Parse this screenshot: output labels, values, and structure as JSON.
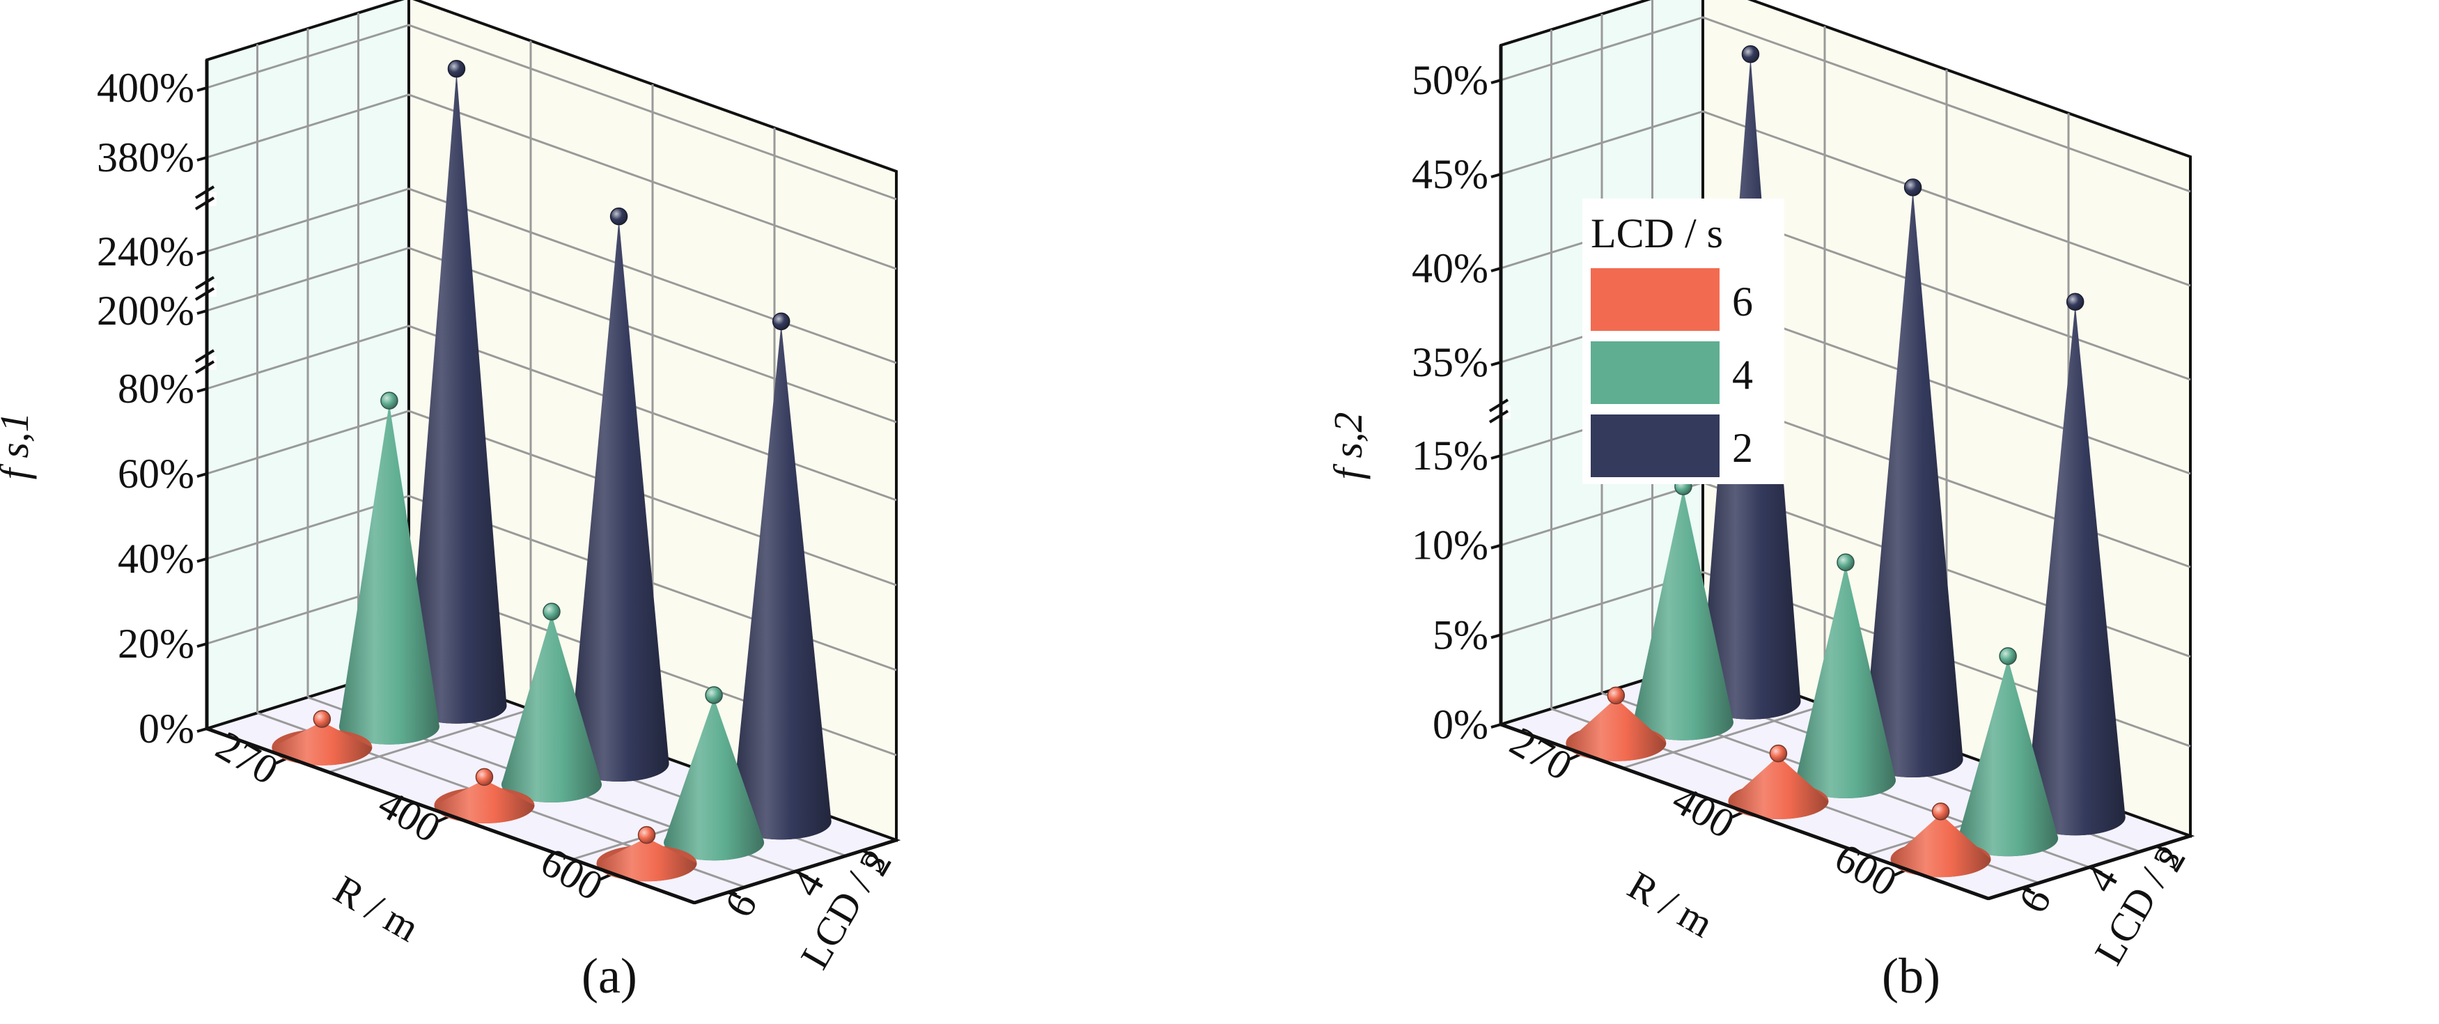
{
  "colors": {
    "lcd6": "#F26B50",
    "lcd4": "#5FAE92",
    "lcd2": "#343A5C",
    "back_wall": "#EEFBF7",
    "side_wall": "#FBFBEF",
    "floor": "#F4F2FC",
    "grid": "#9A9A9A",
    "frame": "#111111"
  },
  "captions": {
    "a": "(a)",
    "b": "(b)"
  },
  "chart_data": [
    {
      "type": "3d-cone",
      "panel": "(a)",
      "zlabel": "f s,1",
      "xlabel": "R / m",
      "ylabel": "LCD / s",
      "x_categories": [
        "270",
        "400",
        "600"
      ],
      "y_categories": [
        "2",
        "4",
        "6"
      ],
      "z_ticks": [
        "0%",
        "20%",
        "40%",
        "60%",
        "80%",
        "200%",
        "240%",
        "380%",
        "400%"
      ],
      "axis_breaks": [
        "80%–200%",
        "200%–240%",
        "240%–380%"
      ],
      "series": [
        {
          "name": "6",
          "lcd": 6,
          "values": [
            6,
            6,
            6
          ]
        },
        {
          "name": "4",
          "lcd": 4,
          "values": [
            76,
            40,
            34
          ]
        },
        {
          "name": "2",
          "lcd": 2,
          "values": [
            398,
            340,
            270
          ]
        }
      ]
    },
    {
      "type": "3d-cone",
      "panel": "(b)",
      "zlabel": "f s,2",
      "xlabel": "R / m",
      "ylabel": "LCD / s",
      "x_categories": [
        "270",
        "400",
        "600"
      ],
      "y_categories": [
        "2",
        "4",
        "6"
      ],
      "z_ticks": [
        "0%",
        "5%",
        "10%",
        "15%",
        "35%",
        "40%",
        "45%",
        "50%"
      ],
      "axis_breaks": [
        "15%–35%"
      ],
      "legend": {
        "title": "LCD / s",
        "entries": [
          "6",
          "4",
          "2"
        ],
        "placement": "top-left"
      },
      "series": [
        {
          "name": "6",
          "lcd": 6,
          "values": [
            2.5,
            2.5,
            2.5
          ]
        },
        {
          "name": "4",
          "lcd": 4,
          "values": [
            13,
            12,
            10
          ]
        },
        {
          "name": "2",
          "lcd": 2,
          "values": [
            50,
            46,
            43
          ]
        }
      ]
    }
  ]
}
